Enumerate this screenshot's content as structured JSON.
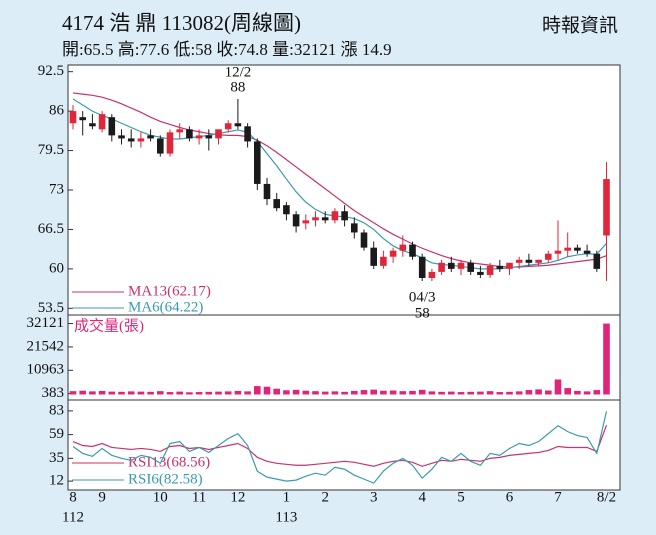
{
  "header": {
    "title": "4174 浩 鼎 113082(周線圖)",
    "source": "時報資訊",
    "summary": "開:65.5 高:77.6 低:58 收:74.8 量:32121 漲 14.9"
  },
  "chart_data": [
    {
      "type": "candlestick",
      "up_color": "#e0263a",
      "down_color": "#1a1a1a",
      "categories": [
        "8",
        null,
        null,
        "9",
        null,
        null,
        null,
        null,
        null,
        "10",
        null,
        null,
        null,
        "11",
        null,
        null,
        null,
        "12",
        null,
        null,
        null,
        null,
        "1",
        null,
        null,
        null,
        "2",
        null,
        null,
        null,
        null,
        "3",
        null,
        null,
        null,
        null,
        "4",
        null,
        null,
        null,
        "5",
        null,
        null,
        null,
        null,
        "6",
        null,
        null,
        null,
        null,
        "7",
        null,
        null,
        null,
        null,
        "8/2"
      ],
      "years": [
        "112",
        null,
        null,
        null,
        null,
        null,
        null,
        null,
        null,
        null,
        null,
        null,
        null,
        null,
        null,
        null,
        null,
        null,
        null,
        null,
        null,
        null,
        "113",
        null,
        null,
        null,
        null,
        null,
        null,
        null,
        null,
        null,
        null,
        null,
        null,
        null,
        null,
        null,
        null,
        null,
        null,
        null,
        null,
        null,
        null,
        null,
        null,
        null,
        null,
        null,
        null,
        null,
        null,
        null,
        null,
        null
      ],
      "open": [
        84,
        85,
        84,
        83,
        85,
        82,
        81.5,
        81,
        82,
        81.5,
        79,
        82.5,
        83,
        81.5,
        82,
        81.5,
        83,
        84,
        83.5,
        81,
        74,
        71.5,
        70.5,
        69,
        67.5,
        68,
        68.5,
        68,
        69.5,
        67.5,
        66,
        63.5,
        60.5,
        62,
        63,
        64,
        62,
        58.5,
        59.5,
        61,
        60,
        61,
        59.5,
        59,
        60.5,
        60,
        61,
        61.5,
        61,
        61.5,
        62.5,
        63,
        63.5,
        63,
        62.5,
        65.5
      ],
      "high": [
        87,
        86,
        85.5,
        86,
        85.5,
        83,
        83,
        82.5,
        83,
        82,
        83,
        84,
        83.5,
        83,
        83,
        83,
        84.5,
        88,
        84,
        81.5,
        75,
        72.5,
        71,
        69.5,
        69,
        69.5,
        69.5,
        70,
        70.5,
        68.5,
        66.5,
        64.5,
        63,
        63.5,
        65.5,
        64.5,
        62.5,
        60,
        61.5,
        62,
        61.5,
        61.5,
        60.5,
        61,
        61.5,
        61,
        62,
        62.5,
        61.5,
        63,
        68,
        66,
        64,
        64,
        63,
        77.6
      ],
      "low": [
        83,
        82,
        83,
        82.5,
        81,
        80.5,
        80,
        80,
        81,
        78.5,
        78.5,
        81.5,
        81,
        80.5,
        79.5,
        80.5,
        82.5,
        83,
        80,
        73,
        70.5,
        69.5,
        68,
        66,
        66.5,
        67,
        67.5,
        67.5,
        67,
        65,
        63,
        60,
        60,
        61,
        62,
        61.5,
        58,
        58,
        59,
        59.5,
        59,
        59,
        58.5,
        58.5,
        59.5,
        59,
        60,
        60.5,
        60.5,
        61,
        61.5,
        62,
        62.5,
        62,
        59.5,
        58
      ],
      "close": [
        86,
        84.5,
        83.5,
        85.5,
        82,
        81.5,
        81,
        81.5,
        81.5,
        79,
        82.5,
        83,
        81.5,
        82,
        81.5,
        83,
        84,
        83.5,
        81,
        74,
        71.5,
        70,
        69,
        67,
        68,
        68.5,
        68,
        69.5,
        68,
        66,
        63.5,
        60.5,
        62,
        63,
        64,
        62,
        58.5,
        59.5,
        61,
        60,
        61,
        59.5,
        59,
        60.5,
        60,
        61,
        61.5,
        61,
        61.5,
        62.5,
        63,
        63.5,
        63,
        62.5,
        60,
        74.8
      ],
      "series": [
        {
          "name": "MA13(62.17)",
          "color": "#c8326a",
          "values": [
            89,
            88.8,
            88.6,
            88.3,
            87.8,
            87.2,
            86.5,
            85.8,
            85,
            84.3,
            83.8,
            83.3,
            82.9,
            82.6,
            82.3,
            82.1,
            82,
            82,
            81.8,
            81.2,
            80.3,
            79.2,
            78,
            76.8,
            75.6,
            74.4,
            73.2,
            72,
            70.8,
            69.6,
            68.6,
            67.6,
            66.6,
            65.7,
            64.9,
            64.1,
            63.4,
            62.8,
            62.2,
            61.7,
            61.3,
            61,
            60.8,
            60.6,
            60.4,
            60.3,
            60.3,
            60.4,
            60.5,
            60.6,
            60.8,
            61,
            61.2,
            61.4,
            61.6,
            62.17
          ]
        },
        {
          "name": "MA6(64.22)",
          "color": "#3a9ab0",
          "values": [
            88,
            87,
            86,
            85.3,
            84.7,
            84,
            83.3,
            82.6,
            82,
            81.7,
            81.4,
            81.4,
            81.6,
            81.8,
            82,
            82.3,
            82.6,
            82.9,
            82.5,
            81,
            79,
            77,
            74.8,
            72.7,
            71,
            69.8,
            69,
            68.7,
            68.6,
            68.3,
            67.6,
            66.5,
            65,
            63.8,
            63,
            62.5,
            61.8,
            61,
            60.7,
            60.6,
            60.4,
            60.2,
            60,
            60,
            60,
            60.2,
            60.4,
            60.6,
            60.8,
            61,
            61.4,
            62,
            62.3,
            62.5,
            62.4,
            64.22
          ]
        }
      ],
      "ylim": [
        52.4,
        93.6
      ],
      "yticks": [
        53.5,
        60,
        66.5,
        73,
        79.5,
        86,
        92.5
      ],
      "annotations": [
        {
          "date": "12/2",
          "value": 88
        },
        {
          "date": "04/3",
          "value": 58
        }
      ]
    },
    {
      "type": "bar",
      "title": "成交量(張)",
      "color": "#e0247a",
      "values": [
        1500,
        1700,
        1400,
        1600,
        1300,
        1200,
        1400,
        1300,
        1200,
        1500,
        1100,
        1300,
        1000,
        1100,
        1200,
        1300,
        1400,
        1600,
        1400,
        3800,
        3500,
        2600,
        1900,
        2100,
        1700,
        1500,
        1300,
        1400,
        1200,
        1600,
        2000,
        2200,
        1700,
        1800,
        1500,
        1600,
        2100,
        1400,
        1200,
        1300,
        1100,
        1200,
        1300,
        1500,
        1100,
        1200,
        1400,
        2000,
        2300,
        1800,
        6800,
        2900,
        1600,
        1400,
        2000,
        32121
      ],
      "ylim": [
        -2500,
        36000
      ],
      "yticks": [
        383,
        10963,
        21542,
        32121
      ]
    },
    {
      "type": "line",
      "series": [
        {
          "name": "RSI13(68.56)",
          "color": "#c8326a",
          "values": [
            52,
            48,
            47,
            50,
            46,
            45,
            44,
            45,
            44,
            42,
            47,
            48,
            45,
            46,
            44,
            46,
            48,
            50,
            45,
            36,
            32,
            30,
            29,
            28,
            28,
            29,
            30,
            31,
            32,
            31,
            29,
            27,
            30,
            32,
            33,
            31,
            27,
            30,
            33,
            32,
            34,
            33,
            32,
            35,
            36,
            38,
            39,
            40,
            41,
            43,
            47,
            46,
            46,
            46,
            42,
            68.56
          ]
        },
        {
          "name": "RSI6(82.58)",
          "color": "#3a9ab0",
          "values": [
            47,
            40,
            37,
            45,
            38,
            35,
            33,
            38,
            36,
            30,
            50,
            52,
            42,
            46,
            41,
            48,
            55,
            60,
            48,
            22,
            16,
            14,
            12,
            13,
            17,
            20,
            18,
            26,
            24,
            18,
            14,
            10,
            22,
            30,
            35,
            28,
            15,
            24,
            36,
            32,
            40,
            32,
            28,
            40,
            38,
            45,
            50,
            48,
            52,
            60,
            68,
            62,
            58,
            56,
            40,
            82.58
          ]
        }
      ],
      "ylim": [
        3,
        94
      ],
      "yticks": [
        12,
        35,
        59,
        83
      ]
    }
  ]
}
